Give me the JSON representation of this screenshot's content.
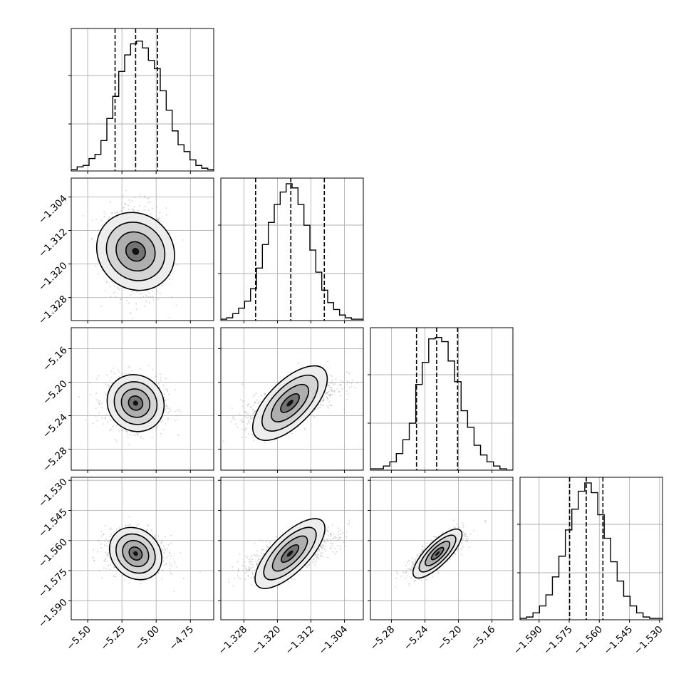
{
  "chart_data": {
    "type": "corner",
    "grid": true,
    "parameters": [
      {
        "ticks": [
          -5.5,
          -5.25,
          -5.0,
          -4.75
        ],
        "tick_labels": [
          "−5.50",
          "−5.25",
          "−5.00",
          "−4.75"
        ],
        "range": [
          -5.62,
          -4.58
        ],
        "quantiles": [
          -5.3,
          -5.15,
          -4.99
        ],
        "center": -5.15,
        "sd": 0.11
      },
      {
        "ticks": [
          -1.328,
          -1.32,
          -1.312,
          -1.304
        ],
        "tick_labels": [
          "−1.328",
          "−1.320",
          "−1.312",
          "−1.304"
        ],
        "range": [
          -1.3335,
          -1.2995
        ],
        "quantiles": [
          -1.3252,
          -1.3168,
          -1.3088
        ],
        "center": -1.317,
        "sd": 0.0057
      },
      {
        "ticks": [
          -5.28,
          -5.24,
          -5.2,
          -5.16
        ],
        "tick_labels": [
          "−5.28",
          "−5.24",
          "−5.20",
          "−5.16"
        ],
        "range": [
          -5.305,
          -5.135
        ],
        "quantiles": [
          -5.25,
          -5.226,
          -5.201
        ],
        "center": -5.225,
        "sd": 0.016
      },
      {
        "ticks": [
          -1.59,
          -1.575,
          -1.56,
          -1.545,
          -1.53
        ],
        "tick_labels": [
          "−1.590",
          "−1.575",
          "−1.560",
          "−1.545",
          "−1.530"
        ],
        "range": [
          -1.5995,
          -1.5285
        ],
        "quantiles": [
          -1.5748,
          -1.5665,
          -1.5582
        ],
        "center": -1.5665,
        "sd": 0.0055
      }
    ],
    "histograms": [
      [
        0.01,
        0.03,
        0.04,
        0.09,
        0.12,
        0.22,
        0.38,
        0.54,
        0.72,
        0.84,
        0.92,
        0.94,
        0.89,
        0.8,
        0.74,
        0.58,
        0.44,
        0.29,
        0.19,
        0.14,
        0.08,
        0.04,
        0.02,
        0.01
      ],
      [
        0.01,
        0.02,
        0.05,
        0.09,
        0.14,
        0.23,
        0.38,
        0.55,
        0.71,
        0.84,
        0.93,
        0.99,
        0.96,
        0.84,
        0.69,
        0.51,
        0.35,
        0.22,
        0.13,
        0.08,
        0.04,
        0.02,
        0.01,
        0.01
      ],
      [
        0.01,
        0.01,
        0.03,
        0.06,
        0.12,
        0.22,
        0.34,
        0.62,
        0.78,
        0.95,
        0.96,
        0.93,
        0.79,
        0.64,
        0.43,
        0.31,
        0.18,
        0.11,
        0.06,
        0.03,
        0.01,
        0.0
      ],
      [
        0.01,
        0.02,
        0.05,
        0.1,
        0.18,
        0.31,
        0.46,
        0.65,
        0.8,
        0.93,
        0.99,
        0.92,
        0.76,
        0.59,
        0.42,
        0.28,
        0.17,
        0.1,
        0.05,
        0.02,
        0.01,
        0.01
      ]
    ],
    "correlations": [
      [
        1.0,
        -0.1,
        -0.08,
        -0.18
      ],
      [
        -0.1,
        1.0,
        0.65,
        0.72
      ],
      [
        -0.08,
        0.65,
        1.0,
        0.78
      ],
      [
        -0.18,
        0.72,
        0.78,
        1.0
      ]
    ],
    "contour_levels_sigma": [
      0.5,
      1.0,
      1.5,
      2.0
    ],
    "colors": {
      "line": "#000000",
      "scatter": "#9a9a9a",
      "grid": "#b0b0b0",
      "frame": "#000000"
    }
  }
}
